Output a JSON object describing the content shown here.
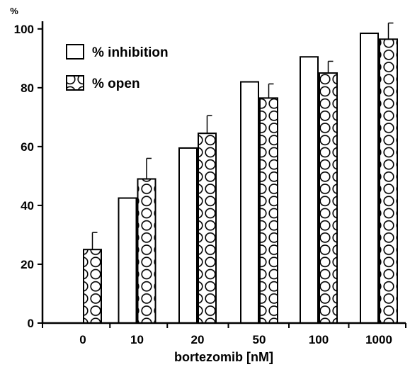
{
  "chart_data": {
    "type": "bar",
    "title": "",
    "xlabel": "bortezomib [nM]",
    "ylabel": "%",
    "ylim": [
      0,
      100
    ],
    "yticks": [
      0,
      20,
      40,
      60,
      80,
      100
    ],
    "categories": [
      "0",
      "10",
      "20",
      "50",
      "100",
      "1000"
    ],
    "legend_position": "top-left",
    "series": [
      {
        "name": "% inhibition",
        "pattern": "plain",
        "fill": "#ffffff",
        "values": [
          0,
          42.5,
          59.5,
          82,
          90.5,
          98.5
        ],
        "errors": [
          0,
          0,
          0,
          0,
          0,
          0
        ]
      },
      {
        "name": "% open",
        "pattern": "circles",
        "fill": "#ffffff",
        "values": [
          25,
          49,
          64.5,
          76.5,
          85,
          96.5
        ],
        "errors": [
          5.8,
          7,
          6,
          4.8,
          4,
          5.5
        ]
      }
    ]
  }
}
